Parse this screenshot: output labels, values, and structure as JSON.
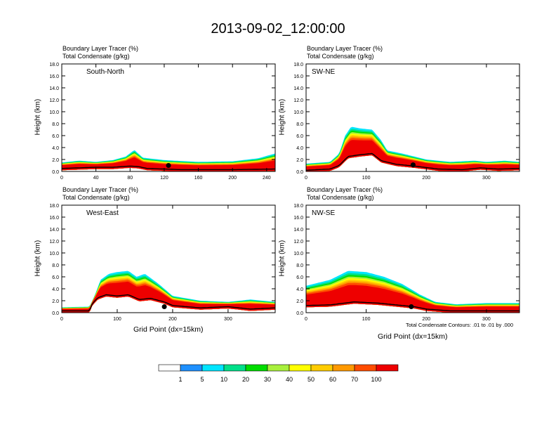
{
  "title": "2013-09-02_12:00:00",
  "xlabel": "Grid Point (dx=15km)",
  "contour_note": "Total Condensate Contours: .01 to .01 by .000",
  "colorbar": {
    "labels": [
      "1",
      "5",
      "10",
      "20",
      "30",
      "40",
      "50",
      "60",
      "70",
      "100"
    ],
    "colors": [
      "#ffffff",
      "#1e90ff",
      "#00e5ff",
      "#00e08a",
      "#00dd00",
      "#a8f03c",
      "#ffff00",
      "#ffcc00",
      "#ff9900",
      "#ff4c00",
      "#ee0000"
    ]
  },
  "chart_data": [
    {
      "type": "heatmap",
      "section": "South-North",
      "title_lines": [
        "Boundary Layer Tracer   (%)",
        "Total Condensate   (g/kg)"
      ],
      "ylabel": "Height (km)",
      "ylim": [
        0,
        18
      ],
      "yticks": [
        "0.0",
        "2.0",
        "4.0",
        "6.0",
        "8.0",
        "10.0",
        "12.0",
        "14.0",
        "16.0",
        "18.0"
      ],
      "xlim": [
        0,
        250
      ],
      "xticks": [
        0,
        40,
        80,
        120,
        160,
        200,
        240
      ],
      "terrain": [
        [
          0,
          0.5
        ],
        [
          20,
          0.6
        ],
        [
          40,
          0.7
        ],
        [
          60,
          0.7
        ],
        [
          80,
          0.9
        ],
        [
          90,
          0.8
        ],
        [
          100,
          0.5
        ],
        [
          140,
          0.3
        ],
        [
          200,
          0.3
        ],
        [
          250,
          0.4
        ]
      ],
      "pbl_top": [
        [
          0,
          1.5
        ],
        [
          20,
          1.8
        ],
        [
          40,
          1.6
        ],
        [
          60,
          1.9
        ],
        [
          75,
          2.5
        ],
        [
          85,
          3.6
        ],
        [
          95,
          2.3
        ],
        [
          120,
          1.9
        ],
        [
          160,
          1.6
        ],
        [
          200,
          1.7
        ],
        [
          230,
          2.2
        ],
        [
          250,
          3.0
        ]
      ],
      "marker_x": 125,
      "marker_y": 1.0
    },
    {
      "type": "heatmap",
      "section": "SW-NE",
      "title_lines": [
        "Boundary Layer Tracer   (%)",
        "Total Condensate   (g/kg)"
      ],
      "ylabel": "Height (km)",
      "ylim": [
        0,
        18
      ],
      "yticks": [
        "0.0",
        "2.0",
        "4.0",
        "6.0",
        "8.0",
        "10.0",
        "12.0",
        "14.0",
        "16.0",
        "18.0"
      ],
      "xlim": [
        0,
        355
      ],
      "xticks": [
        0,
        100,
        200,
        300
      ],
      "terrain": [
        [
          0,
          0.2
        ],
        [
          40,
          0.4
        ],
        [
          55,
          1.0
        ],
        [
          70,
          2.5
        ],
        [
          90,
          2.8
        ],
        [
          110,
          3.0
        ],
        [
          125,
          1.8
        ],
        [
          150,
          1.2
        ],
        [
          180,
          0.9
        ],
        [
          220,
          0.4
        ],
        [
          260,
          0.3
        ],
        [
          290,
          0.6
        ],
        [
          320,
          0.4
        ],
        [
          355,
          0.5
        ]
      ],
      "pbl_top": [
        [
          0,
          1.3
        ],
        [
          40,
          1.6
        ],
        [
          55,
          3.0
        ],
        [
          65,
          6.0
        ],
        [
          75,
          7.5
        ],
        [
          90,
          7.2
        ],
        [
          110,
          7.0
        ],
        [
          125,
          5.2
        ],
        [
          135,
          3.5
        ],
        [
          160,
          3.0
        ],
        [
          200,
          2.0
        ],
        [
          240,
          1.6
        ],
        [
          280,
          1.8
        ],
        [
          300,
          1.6
        ],
        [
          330,
          1.8
        ],
        [
          355,
          1.6
        ]
      ],
      "marker_x": 178,
      "marker_y": 1.1
    },
    {
      "type": "heatmap",
      "section": "West-East",
      "title_lines": [
        "Boundary Layer Tracer   (%)",
        "Total Condensate   (g/kg)"
      ],
      "ylabel": "Height (km)",
      "ylim": [
        0,
        18
      ],
      "yticks": [
        "0.0",
        "2.0",
        "4.0",
        "6.0",
        "8.0",
        "10.0",
        "12.0",
        "14.0",
        "16.0",
        "18.0"
      ],
      "xlim": [
        0,
        385
      ],
      "xticks": [
        0,
        100,
        200,
        300
      ],
      "terrain": [
        [
          0,
          0.3
        ],
        [
          50,
          0.3
        ],
        [
          55,
          1.5
        ],
        [
          65,
          2.5
        ],
        [
          80,
          3.0
        ],
        [
          100,
          2.8
        ],
        [
          120,
          3.0
        ],
        [
          140,
          2.2
        ],
        [
          160,
          2.4
        ],
        [
          185,
          1.8
        ],
        [
          200,
          1.2
        ],
        [
          250,
          0.8
        ],
        [
          300,
          1.0
        ],
        [
          340,
          0.6
        ],
        [
          385,
          0.8
        ]
      ],
      "pbl_top": [
        [
          0,
          0.9
        ],
        [
          50,
          1.0
        ],
        [
          60,
          3.0
        ],
        [
          70,
          5.5
        ],
        [
          85,
          6.5
        ],
        [
          100,
          6.8
        ],
        [
          120,
          7.0
        ],
        [
          135,
          6.0
        ],
        [
          150,
          6.5
        ],
        [
          175,
          4.8
        ],
        [
          200,
          2.8
        ],
        [
          250,
          2.0
        ],
        [
          300,
          1.8
        ],
        [
          340,
          2.2
        ],
        [
          385,
          1.8
        ]
      ],
      "marker_x": 185,
      "marker_y": 1.0
    },
    {
      "type": "heatmap",
      "section": "NW-SE",
      "title_lines": [
        "Boundary Layer Tracer   (%)",
        "Total Condensate   (g/kg)"
      ],
      "ylabel": "Height (km)",
      "ylim": [
        0,
        18
      ],
      "yticks": [
        "0.0",
        "2.0",
        "4.0",
        "6.0",
        "8.0",
        "10.0",
        "12.0",
        "14.0",
        "16.0",
        "18.0"
      ],
      "xlim": [
        0,
        355
      ],
      "xticks": [
        0,
        100,
        200,
        300
      ],
      "terrain": [
        [
          0,
          1.2
        ],
        [
          40,
          1.3
        ],
        [
          80,
          1.8
        ],
        [
          120,
          1.6
        ],
        [
          160,
          1.2
        ],
        [
          180,
          1.0
        ],
        [
          200,
          0.6
        ],
        [
          240,
          0.3
        ],
        [
          300,
          0.3
        ],
        [
          355,
          0.3
        ]
      ],
      "pbl_top": [
        [
          0,
          4.5
        ],
        [
          40,
          5.5
        ],
        [
          70,
          7.0
        ],
        [
          100,
          6.8
        ],
        [
          130,
          6.0
        ],
        [
          160,
          4.8
        ],
        [
          190,
          3.0
        ],
        [
          215,
          1.8
        ],
        [
          250,
          1.4
        ],
        [
          300,
          1.6
        ],
        [
          355,
          1.6
        ]
      ],
      "marker_x": 175,
      "marker_y": 1.0
    }
  ]
}
